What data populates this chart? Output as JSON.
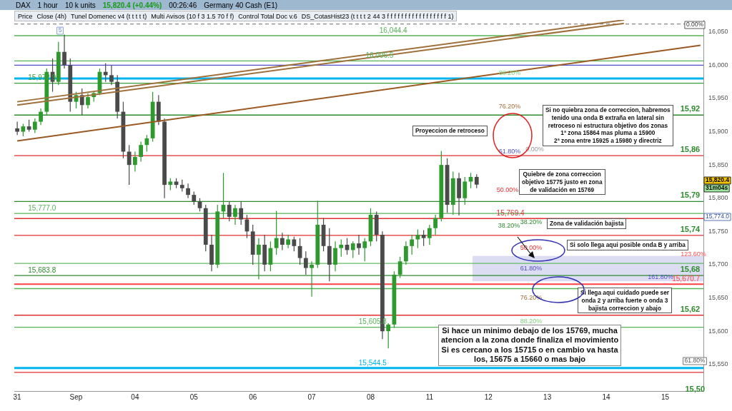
{
  "chart_data": {
    "type": "candlestick",
    "title": "Germany 40 Cash (E1)",
    "subtitle": "15,820.4 (+0.44%)",
    "categories": [
      "31",
      null,
      null,
      null,
      null,
      null,
      null,
      null,
      null,
      null,
      "Sep",
      null,
      null,
      null,
      null,
      null,
      null,
      null,
      null,
      null,
      "04",
      null,
      null,
      null,
      null,
      null,
      null,
      null,
      null,
      null,
      "05",
      null,
      null,
      null,
      null,
      null,
      null,
      null,
      null,
      null,
      "06",
      null,
      null,
      null,
      null,
      null,
      null,
      null,
      null,
      null,
      "07",
      null,
      null,
      null,
      null,
      null,
      null,
      null,
      null,
      null,
      "08",
      null,
      null,
      null,
      null,
      null,
      null,
      null,
      null,
      null,
      "11",
      null,
      null,
      null,
      null,
      null,
      null,
      null,
      null,
      null,
      "12",
      null,
      null,
      null,
      null,
      null,
      null,
      null,
      null,
      null,
      "13",
      null,
      null,
      null,
      null,
      null,
      null,
      null,
      null,
      null,
      "14",
      null,
      null,
      null,
      null,
      null,
      null,
      null,
      null,
      null,
      "15",
      null,
      null,
      null,
      null,
      null,
      null
    ],
    "colors": [
      "#4a4a4a",
      "#2e9a2e",
      "#4a4a4a",
      "#2e9a2e",
      "#2e9a2e",
      "#2e9a2e",
      "#4a4a4a",
      "#2e9a2e",
      "#4a4a4a",
      "#4a4a4a",
      "#2e9a2e",
      "#4a4a4a",
      "#2e9a2e",
      "#2e9a2e",
      "#2e9a2e",
      "#4a4a4a",
      "#4a4a4a",
      "#4a4a4a",
      "#4a4a4a",
      "#4a4a4a",
      "#2e9a2e",
      "#2e9a2e",
      "#2e9a2e",
      "#2e9a2e",
      "#4a4a4a",
      "#4a4a4a",
      "#2e9a2e",
      "#4a4a4a",
      "#4a4a4a",
      "#4a4a4a",
      "#4a4a4a",
      "#4a4a4a",
      "#4a4a4a",
      "#4a4a4a",
      "#2e9a2e",
      "#2e9a2e",
      "#4a4a4a",
      "#2e9a2e",
      "#4a4a4a",
      "#4a4a4a",
      "#4a4a4a",
      "#2e9a2e",
      "#4a4a4a",
      "#2e9a2e",
      "#2e9a2e",
      "#4a4a4a",
      "#2e9a2e",
      "#4a4a4a",
      "#4a4a4a",
      "#4a4a4a",
      "#2e9a2e",
      "#2e9a2e",
      "#4a4a4a",
      "#4a4a4a",
      "#2e9a2e",
      "#2e9a2e",
      "#4a4a4a",
      "#2e9a2e",
      "#4a4a4a",
      "#2e9a2e",
      "#2e9a2e",
      "#4a4a4a",
      "#4a4a4a",
      "#2e9a2e",
      "#2e9a2e",
      "#2e9a2e",
      "#2e9a2e",
      "#2e9a2e",
      "#2e9a2e",
      "#4a4a4a",
      "#2e9a2e",
      "#2e9a2e",
      "#2e9a2e",
      "#4a4a4a",
      "#2e9a2e",
      "#4a4a4a",
      "#2e9a2e",
      "#2e9a2e",
      "#4a4a4a",
      null,
      null,
      null,
      null,
      null,
      null,
      null,
      null,
      null,
      null,
      null,
      null,
      null,
      null,
      null,
      null,
      null,
      null,
      null,
      null,
      null,
      null,
      null,
      null,
      null,
      null,
      null,
      null,
      null,
      null,
      null,
      null,
      null,
      null,
      null,
      null,
      null,
      null
    ],
    "ohlc": [
      [
        15905,
        15915,
        15895,
        15900
      ],
      [
        15900,
        15912,
        15893,
        15908
      ],
      [
        15908,
        15918,
        15900,
        15903
      ],
      [
        15903,
        15920,
        15898,
        15915
      ],
      [
        15915,
        15935,
        15910,
        15930
      ],
      [
        15930,
        15995,
        15925,
        15990
      ],
      [
        15990,
        16010,
        15960,
        15975
      ],
      [
        15975,
        16035,
        15970,
        16020
      ],
      [
        16020,
        16046,
        15995,
        16000
      ],
      [
        16000,
        16010,
        15930,
        15945
      ],
      [
        15945,
        15960,
        15935,
        15955
      ],
      [
        15955,
        15965,
        15925,
        15940
      ],
      [
        15940,
        15958,
        15935,
        15952
      ],
      [
        15952,
        15960,
        15945,
        15958
      ],
      [
        15958,
        15995,
        15955,
        15990
      ],
      [
        15990,
        16003,
        15975,
        15985
      ],
      [
        15985,
        16000,
        15970,
        15975
      ],
      [
        15975,
        15985,
        15920,
        15930
      ],
      [
        15930,
        15945,
        15860,
        15870
      ],
      [
        15870,
        15880,
        15820,
        15850
      ],
      [
        15850,
        15870,
        15840,
        15862
      ],
      [
        15862,
        15885,
        15855,
        15880
      ],
      [
        15880,
        15895,
        15870,
        15890
      ],
      [
        15890,
        15960,
        15885,
        15945
      ],
      [
        15945,
        15955,
        15910,
        15915
      ],
      [
        15915,
        15920,
        15800,
        15820
      ],
      [
        15820,
        15830,
        15812,
        15825
      ],
      [
        15825,
        15830,
        15815,
        15820
      ],
      [
        15820,
        15828,
        15810,
        15815
      ],
      [
        15815,
        15822,
        15800,
        15805
      ],
      [
        15805,
        15810,
        15790,
        15795
      ],
      [
        15795,
        15800,
        15780,
        15785
      ],
      [
        15785,
        15790,
        15720,
        15730
      ],
      [
        15730,
        15745,
        15690,
        15700
      ],
      [
        15700,
        15790,
        15695,
        15780
      ],
      [
        15780,
        15838,
        15770,
        15790
      ],
      [
        15790,
        15795,
        15765,
        15772
      ],
      [
        15772,
        15790,
        15760,
        15785
      ],
      [
        15785,
        15795,
        15760,
        15768
      ],
      [
        15768,
        15775,
        15740,
        15750
      ],
      [
        15750,
        15760,
        15700,
        15715
      ],
      [
        15715,
        15740,
        15678,
        15730
      ],
      [
        15730,
        15745,
        15690,
        15700
      ],
      [
        15700,
        15735,
        15690,
        15725
      ],
      [
        15725,
        15781,
        15715,
        15740
      ],
      [
        15740,
        15748,
        15722,
        15730
      ],
      [
        15730,
        15745,
        15725,
        15738
      ],
      [
        15738,
        15742,
        15720,
        15728
      ],
      [
        15728,
        15740,
        15700,
        15710
      ],
      [
        15710,
        15720,
        15685,
        15695
      ],
      [
        15695,
        15705,
        15652,
        15700
      ],
      [
        15700,
        15796,
        15695,
        15760
      ],
      [
        15760,
        15770,
        15720,
        15728
      ],
      [
        15728,
        15755,
        15675,
        15700
      ],
      [
        15700,
        15735,
        15690,
        15725
      ],
      [
        15725,
        15738,
        15712,
        15730
      ],
      [
        15730,
        15740,
        15715,
        15722
      ],
      [
        15722,
        15735,
        15710,
        15732
      ],
      [
        15732,
        15745,
        15715,
        15725
      ],
      [
        15725,
        15740,
        15705,
        15735
      ],
      [
        15735,
        15785,
        15728,
        15775
      ],
      [
        15775,
        15780,
        15735,
        15745
      ],
      [
        15745,
        15750,
        15588,
        15600
      ],
      [
        15600,
        15612,
        15574,
        15610
      ],
      [
        15610,
        15690,
        15605,
        15685
      ],
      [
        15685,
        15712,
        15680,
        15705
      ],
      [
        15705,
        15735,
        15700,
        15728
      ],
      [
        15728,
        15745,
        15715,
        15738
      ],
      [
        15738,
        15753,
        15725,
        15745
      ],
      [
        15745,
        15752,
        15728,
        15740
      ],
      [
        15740,
        15760,
        15730,
        15755
      ],
      [
        15755,
        15775,
        15745,
        15770
      ],
      [
        15770,
        15871,
        15765,
        15850
      ],
      [
        15850,
        15860,
        15778,
        15790
      ],
      [
        15790,
        15840,
        15775,
        15830
      ],
      [
        15830,
        15838,
        15774,
        15800
      ],
      [
        15800,
        15832,
        15790,
        15825
      ],
      [
        15825,
        15838,
        15815,
        15832
      ],
      [
        15832,
        15836,
        15815,
        15820.4
      ],
      null,
      null,
      null,
      null,
      null,
      null,
      null,
      null,
      null,
      null,
      null,
      null,
      null,
      null,
      null,
      null,
      null,
      null,
      null,
      null,
      null,
      null,
      null,
      null,
      null,
      null,
      null,
      null,
      null,
      null,
      null,
      null,
      null,
      null,
      null,
      null,
      null,
      null
    ],
    "series": [
      {
        "type": "line",
        "color": "#a0703a",
        "values": [
          15945,
          null,
          null,
          null,
          null,
          null,
          null,
          null,
          null,
          null,
          null,
          null,
          null,
          null,
          null,
          null,
          null,
          null,
          null,
          null,
          null,
          null,
          null,
          null,
          null,
          null,
          null,
          null,
          null,
          null,
          null,
          null,
          null,
          null,
          null,
          null,
          null,
          null,
          null,
          null,
          null,
          null,
          null,
          null,
          null,
          null,
          null,
          null,
          null,
          null,
          null,
          null,
          null,
          null,
          null,
          null,
          null,
          null,
          null,
          null,
          null,
          null,
          null,
          null,
          null,
          null,
          null,
          null,
          null,
          null,
          null,
          null,
          null,
          null,
          null,
          null,
          null,
          null,
          null,
          null,
          null,
          null,
          null,
          null,
          null,
          null,
          null,
          null,
          null,
          null,
          null,
          null,
          null,
          null,
          null,
          null,
          null,
          null,
          null,
          null,
          null,
          null,
          null,
          16068,
          null,
          null,
          null,
          null,
          null,
          null,
          null,
          null,
          null,
          null,
          null,
          null,
          null
        ]
      },
      {
        "type": "line",
        "color": "#a0703a",
        "values": [
          15940,
          null,
          null,
          null,
          null,
          null,
          null,
          null,
          null,
          null,
          null,
          null,
          null,
          null,
          null,
          null,
          null,
          null,
          null,
          null,
          null,
          null,
          null,
          null,
          null,
          null,
          null,
          null,
          null,
          null,
          null,
          null,
          null,
          null,
          null,
          null,
          null,
          null,
          null,
          null,
          null,
          null,
          null,
          null,
          null,
          null,
          null,
          null,
          null,
          null,
          null,
          null,
          null,
          null,
          null,
          null,
          null,
          null,
          null,
          null,
          null,
          null,
          null,
          null,
          null,
          null,
          null,
          null,
          null,
          null,
          null,
          null,
          null,
          null,
          null,
          null,
          null,
          null,
          null,
          null,
          null,
          null,
          null,
          null,
          null,
          null,
          null,
          null,
          null,
          null,
          null,
          null,
          null,
          null,
          null,
          null,
          null,
          null,
          null,
          null,
          null,
          null,
          null,
          16063,
          null,
          null,
          null,
          null,
          null,
          null,
          null,
          null,
          null,
          null,
          null,
          null,
          null
        ]
      },
      {
        "type": "line",
        "color": "#9a5a22",
        "values": [
          15886,
          null,
          null,
          null,
          null,
          null,
          null,
          null,
          null,
          null,
          null,
          null,
          null,
          null,
          null,
          null,
          null,
          null,
          null,
          null,
          null,
          null,
          null,
          null,
          null,
          null,
          null,
          null,
          null,
          null,
          null,
          null,
          null,
          null,
          null,
          null,
          null,
          null,
          null,
          null,
          null,
          null,
          null,
          null,
          null,
          null,
          null,
          null,
          null,
          null,
          null,
          null,
          null,
          null,
          null,
          null,
          null,
          null,
          null,
          null,
          null,
          null,
          null,
          null,
          null,
          null,
          null,
          null,
          null,
          null,
          null,
          null,
          null,
          null,
          null,
          null,
          null,
          null,
          null,
          null,
          null,
          null,
          null,
          null,
          null,
          null,
          null,
          null,
          null,
          null,
          null,
          null,
          null,
          null,
          null,
          null,
          null,
          null,
          null,
          null,
          null,
          null,
          null,
          null,
          null,
          null,
          null,
          null,
          null,
          null,
          null,
          null,
          null,
          null,
          null,
          null,
          16030
        ]
      }
    ],
    "ylim": [
      15510,
      16068
    ],
    "yticks": [
      {
        "value": 15550,
        "label": "15,550"
      },
      {
        "value": 15600,
        "label": "15,600"
      },
      {
        "value": 15650,
        "label": "15,650"
      },
      {
        "value": 15700,
        "label": "15,700"
      },
      {
        "value": 15750,
        "label": "15,750"
      },
      {
        "value": 15800,
        "label": "15,800"
      },
      {
        "value": 15850,
        "label": "15,850"
      },
      {
        "value": 15900,
        "label": "15,900"
      },
      {
        "value": 15950,
        "label": "15,950"
      },
      {
        "value": 16000,
        "label": "16,000"
      },
      {
        "value": 16050,
        "label": "16,050"
      }
    ],
    "grid": false,
    "legend": false,
    "ref_lines": [
      {
        "axis": "y",
        "value": 16062,
        "color": "#888888",
        "line_style": "dashed"
      },
      {
        "axis": "y",
        "value": 16044.4,
        "label": "16,044.4",
        "color": "#55b455"
      },
      {
        "axis": "y",
        "value": 16006.5,
        "label": "16,006.5",
        "color": "#55b455"
      },
      {
        "axis": "y",
        "value": 16000,
        "color": "#5050c8"
      },
      {
        "axis": "y",
        "value": 15980,
        "color": "#00b4f0"
      },
      {
        "axis": "y",
        "value": 15972.9,
        "label": "15,972.9",
        "color": "#3aa03a"
      },
      {
        "axis": "y",
        "value": 15925,
        "color": "#2e8b2e"
      },
      {
        "axis": "y",
        "value": 15864,
        "color": "#e03030"
      },
      {
        "axis": "y",
        "value": 15795,
        "color": "#2e8b2e"
      },
      {
        "axis": "y",
        "value": 15777.0,
        "label": "15,777.0",
        "color": "#55b455"
      },
      {
        "axis": "y",
        "value": 15769.4,
        "label": "15,769.4",
        "color": "#e03030"
      },
      {
        "axis": "y",
        "value": 15744,
        "color": "#e03030"
      },
      {
        "axis": "y",
        "value": 15702,
        "color": "#66bb66"
      },
      {
        "axis": "y",
        "value": 15683.8,
        "label": "15,683.8",
        "color": "#2e8b2e"
      },
      {
        "axis": "y",
        "value": 15670.7,
        "label": "15,670.7",
        "color": "#ff4040"
      },
      {
        "axis": "y",
        "value": 15664,
        "color": "#55b455"
      },
      {
        "axis": "y",
        "value": 15624,
        "color": "#e03030"
      },
      {
        "axis": "y",
        "value": 15605.8,
        "label": "15,605.8",
        "color": "#55b455"
      },
      {
        "axis": "y",
        "value": 15544.5,
        "label": "15,544.5",
        "color": "#00b4f0"
      },
      {
        "axis": "y",
        "value": 15538,
        "color": "#e03030"
      }
    ],
    "bands": [
      {
        "axis": "y",
        "from": 15675,
        "to": 15713,
        "color": "#dcdcf2"
      }
    ],
    "annotations": [
      "Proyeccion de retroceso",
      "Si no quiebra zona de correccion, habremos\ntenido una onda B extraña en lateral sin\nretroceso ni estructura objetivo dos zonas\n1ª zona 15864 mas pluma a 15900\n2ª zona entre 15925 a 15980 y directriz",
      "Quiebre de zona correccion\nobjetivo 15775 justo en zona\nde validación en 15769",
      "Zona de validación bajista",
      "Si solo llega aqui posible onda B y arriba",
      "Si llega aqui cuidado puede ser\nonda 2 y arriba fuerte o onda 3\nbajista correccion y abajo",
      "Si hace un minimo debajo de los 15769, mucha\natencion a la zona donde finaliza el movimiento\nSi es cercano a los 15715 o en cambio va hasta\nlos, 15675 a 15660 o mas bajo",
      "DAX",
      "1 hour",
      "10 k units",
      "00:26:46",
      "Price",
      "Close (4h)",
      "Tunel Domenec v4 (t t t t t)",
      "Multi Avisos (10 f 3 1.5 70 f f)",
      "Control Total Doc v.6",
      "DS_CotasHist23 (t t t t 2 44 3 f f f f f f f f f f f f f f f f f 1)",
      "0.00%",
      "88.20%",
      "76.20%",
      "61.80%",
      "0.00%",
      "50.00%",
      "38.20%",
      "38.20%",
      "50.00%",
      "123.60%",
      "61.80%",
      "161.80%",
      "76.20%",
      "88.20%",
      "61.80%",
      "5",
      "15,774.0",
      "15,820.4",
      "31m04s",
      "15,50",
      {
        "text": "15,92",
        "y": 15925
      },
      {
        "text": "15,86",
        "y": 15864
      },
      {
        "text": "15,79",
        "y": 15795
      },
      {
        "text": "15,74",
        "y": 15744
      },
      {
        "text": "15,68",
        "y": 15683.8
      },
      {
        "text": "15,62",
        "y": 15624
      }
    ]
  }
}
